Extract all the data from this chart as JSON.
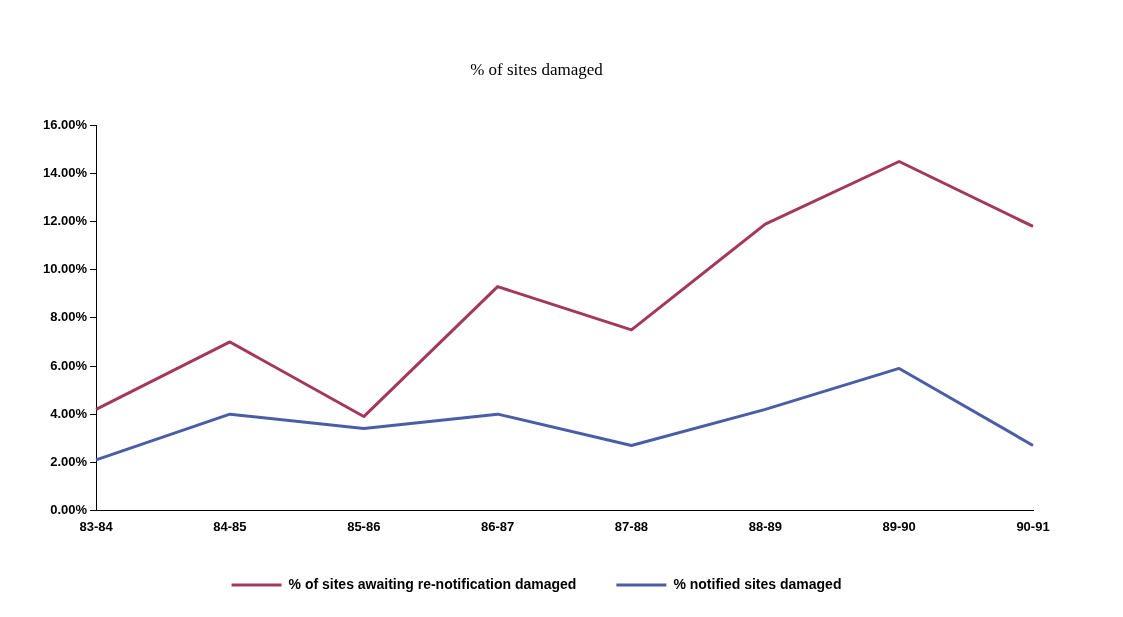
{
  "chart_data": {
    "type": "line",
    "title": "% of sites damaged",
    "categories": [
      "83-84",
      "84-85",
      "85-86",
      "86-87",
      "87-88",
      "88-89",
      "89-90",
      "90-91"
    ],
    "series": [
      {
        "name": "% of sites awaiting re-notification damaged",
        "color": "#a3385a",
        "values": [
          4.2,
          7.0,
          3.9,
          9.3,
          7.5,
          11.9,
          14.5,
          11.8
        ]
      },
      {
        "name": "% notified sites damaged",
        "color": "#4a5ea8",
        "values": [
          2.1,
          4.0,
          3.4,
          4.0,
          2.7,
          4.2,
          5.9,
          2.7
        ]
      }
    ],
    "ylim": [
      0,
      16
    ],
    "yticks": [
      {
        "value": 0,
        "label": "0.00%"
      },
      {
        "value": 2,
        "label": "2.00%"
      },
      {
        "value": 4,
        "label": "4.00%"
      },
      {
        "value": 6,
        "label": "6.00%"
      },
      {
        "value": 8,
        "label": "8.00%"
      },
      {
        "value": 10,
        "label": "10.00%"
      },
      {
        "value": 12,
        "label": "12.00%"
      },
      {
        "value": 14,
        "label": "14.00%"
      },
      {
        "value": 16,
        "label": "16.00%"
      }
    ],
    "grid": false,
    "legend": "bottom",
    "marker": "none",
    "line_style": "solid"
  }
}
